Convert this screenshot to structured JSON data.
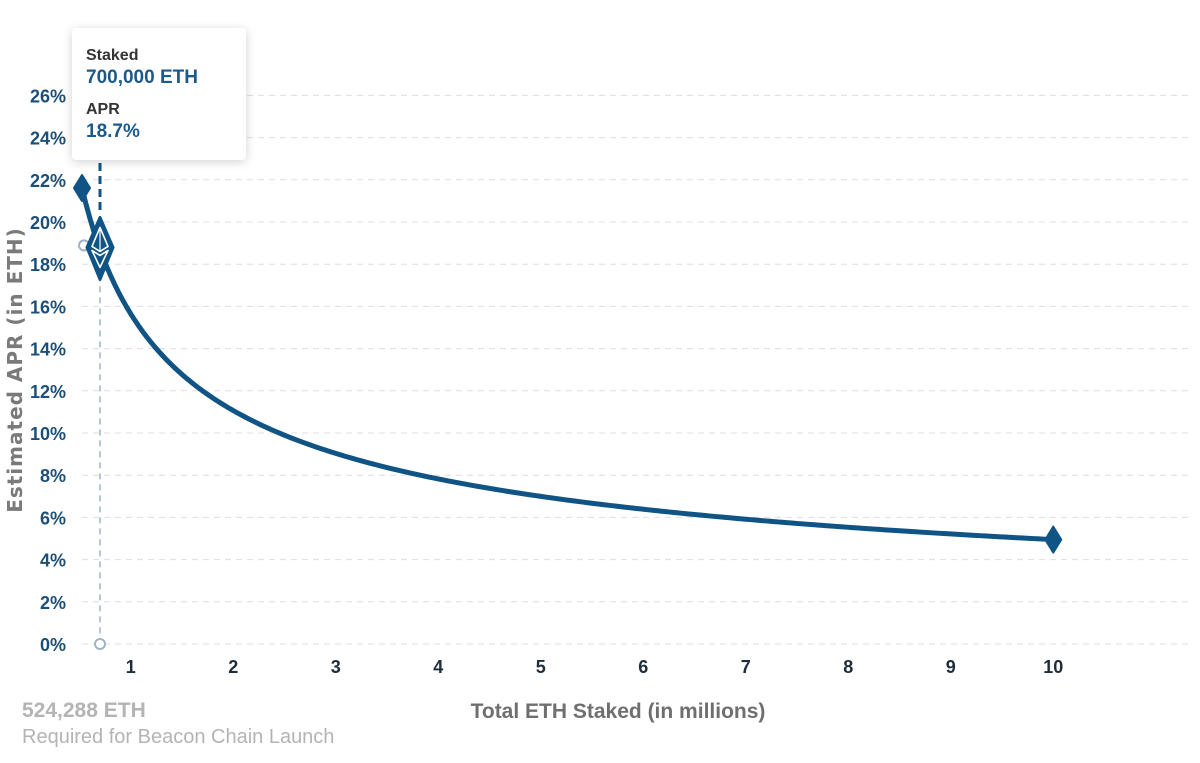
{
  "chart_data": {
    "type": "line",
    "xlabel": "Total ETH Staked  (in millions)",
    "ylabel": "Estimated APR (in ETH)",
    "xlim": [
      0.524288,
      10.524288
    ],
    "ylim": [
      0,
      27
    ],
    "x_ticks": [
      1,
      2,
      3,
      4,
      5,
      6,
      7,
      8,
      9,
      10
    ],
    "x_tick_labels": [
      "1",
      "2",
      "3",
      "4",
      "5",
      "6",
      "7",
      "8",
      "9",
      "10"
    ],
    "y_ticks": [
      0,
      2,
      4,
      6,
      8,
      10,
      12,
      14,
      16,
      18,
      20,
      22,
      24,
      26
    ],
    "y_tick_labels": [
      "0%",
      "2%",
      "4%",
      "6%",
      "8%",
      "10%",
      "12%",
      "14%",
      "16%",
      "18%",
      "20%",
      "22%",
      "24%",
      "26%"
    ],
    "grid": true,
    "series": [
      {
        "x": [
          0.524288,
          0.7,
          1,
          2,
          3,
          4,
          5,
          6,
          7,
          8,
          9,
          10
        ],
        "y": [
          21.6,
          18.7,
          15.6,
          11.0,
          9.0,
          7.8,
          7.0,
          6.4,
          5.9,
          5.5,
          5.2,
          4.95
        ]
      }
    ],
    "selected_point": {
      "x": 0.7,
      "y": 18.7
    },
    "color": "#0f5484"
  },
  "tooltip": {
    "staked_label": "Staked",
    "staked_value": "700,000 ETH",
    "apr_label": "APR",
    "apr_value": "18.7%"
  },
  "launch_note": {
    "amount": "524,288 ETH",
    "caption": "Required for Beacon Chain Launch"
  },
  "icons": {
    "selected_marker": "ethereum-diamond-icon"
  }
}
